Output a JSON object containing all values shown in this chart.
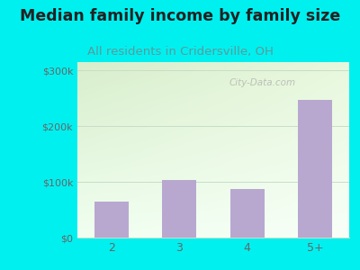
{
  "categories": [
    "2",
    "3",
    "4",
    "5+"
  ],
  "values": [
    65000,
    103000,
    87000,
    247000
  ],
  "bar_color": "#b8a8d0",
  "title": "Median family income by family size",
  "subtitle": "All residents in Cridersville, OH",
  "title_fontsize": 12.5,
  "subtitle_fontsize": 9.5,
  "title_color": "#222222",
  "subtitle_color": "#5a9a9a",
  "ylabel_ticks": [
    "$0",
    "$100k",
    "$200k",
    "$300k"
  ],
  "ytick_values": [
    0,
    100000,
    200000,
    300000
  ],
  "ylim": [
    0,
    315000
  ],
  "bg_color": "#00f0f0",
  "plot_bg_color_topleft": "#d8eecc",
  "plot_bg_color_bottomright": "#f5fff5",
  "grid_color": "#c8ddc8",
  "watermark_text": "City-Data.com",
  "tick_color": "#666666",
  "bar_width": 0.5
}
